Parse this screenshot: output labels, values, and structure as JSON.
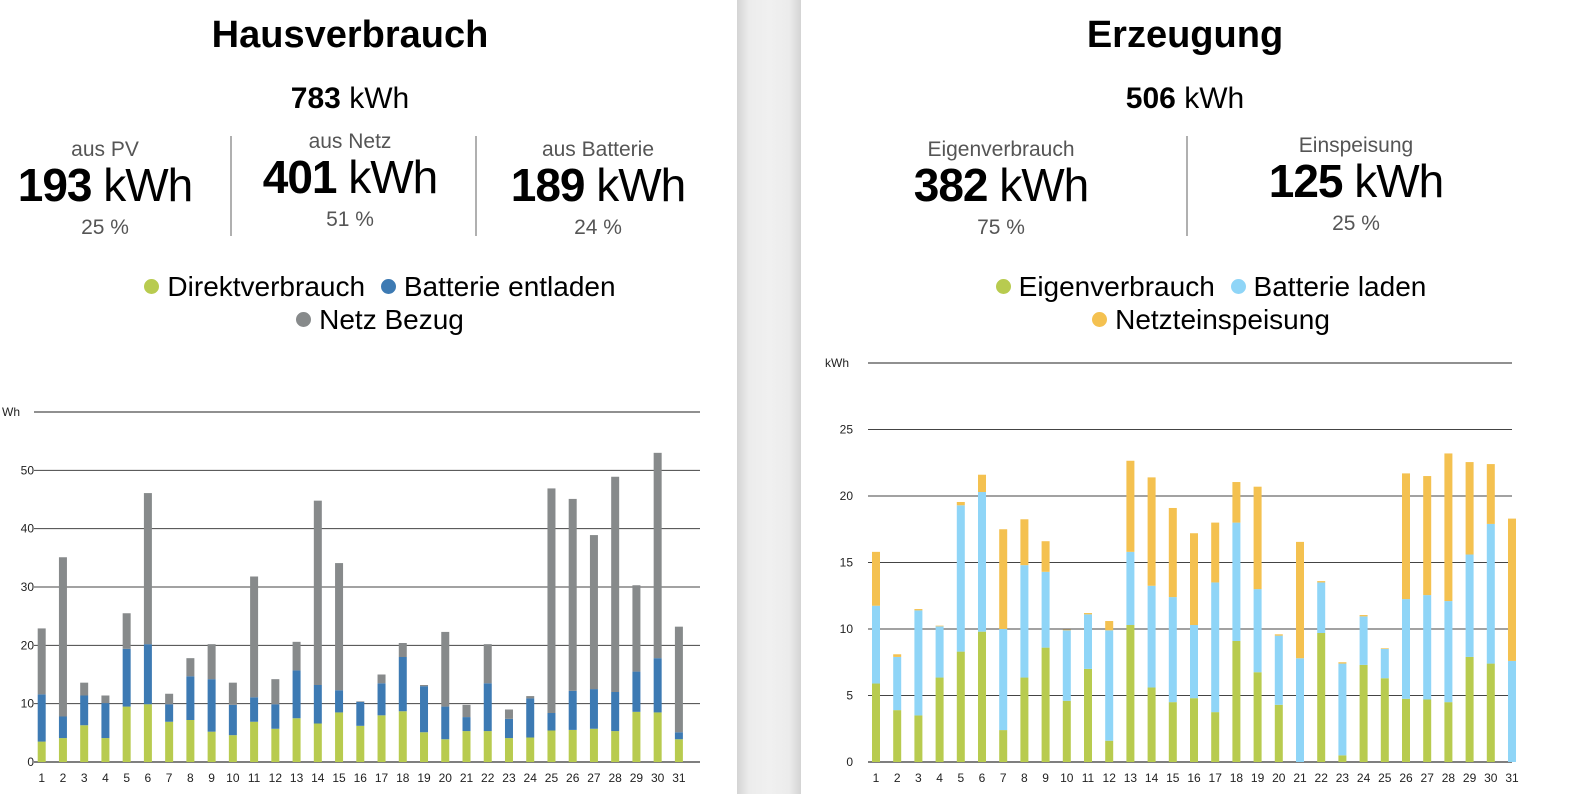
{
  "left": {
    "title": "Hausverbrauch",
    "total_value": "783",
    "total_unit": "kWh",
    "stats": [
      {
        "label": "aus PV",
        "value": "193",
        "unit": "kWh",
        "percent": "25 %"
      },
      {
        "label": "aus Netz",
        "value": "401",
        "unit": "kWh",
        "percent": "51 %"
      },
      {
        "label": "aus Batterie",
        "value": "189",
        "unit": "kWh",
        "percent": "24 %"
      }
    ],
    "legend": [
      {
        "label": "Direktverbrauch",
        "color": "#b8cb4f"
      },
      {
        "label": "Batterie entladen",
        "color": "#3d7ab3"
      },
      {
        "label": "Netz Bezug",
        "color": "#878a8b"
      }
    ]
  },
  "right": {
    "title": "Erzeugung",
    "total_value": "506",
    "total_unit": "kWh",
    "stats": [
      {
        "label": "Eigenverbrauch",
        "value": "382",
        "unit": "kWh",
        "percent": "75 %"
      },
      {
        "label": "Einspeisung",
        "value": "125",
        "unit": "kWh",
        "percent": "25 %"
      }
    ],
    "legend": [
      {
        "label": "Eigenverbrauch",
        "color": "#b8cb4f"
      },
      {
        "label": "Batterie laden",
        "color": "#8fd5f7"
      },
      {
        "label": "Netzteinspeisung",
        "color": "#f4c150"
      }
    ]
  },
  "chart_data": [
    {
      "type": "bar",
      "stacked": true,
      "title": "Hausverbrauch",
      "ylabel": "Wh",
      "ylim": [
        0,
        60
      ],
      "yticks": [
        0,
        10,
        20,
        30,
        40,
        50
      ],
      "categories": [
        "1",
        "2",
        "3",
        "4",
        "5",
        "6",
        "7",
        "8",
        "9",
        "10",
        "11",
        "12",
        "13",
        "14",
        "15",
        "16",
        "17",
        "18",
        "19",
        "20",
        "21",
        "22",
        "23",
        "24",
        "25",
        "26",
        "27",
        "28",
        "29",
        "30",
        "31"
      ],
      "series": [
        {
          "name": "Direktverbrauch",
          "color": "#b8cb4f",
          "values": [
            3.5,
            4.1,
            6.3,
            4.1,
            9.5,
            9.9,
            6.9,
            7.2,
            5.2,
            4.6,
            6.9,
            5.7,
            7.5,
            6.6,
            8.5,
            6.2,
            8.0,
            8.7,
            5.1,
            3.9,
            5.3,
            5.3,
            4.1,
            4.2,
            5.4,
            5.5,
            5.7,
            5.3,
            8.6,
            8.5,
            3.9
          ]
        },
        {
          "name": "Batterie entladen",
          "color": "#3d7ab3",
          "values": [
            8.1,
            3.7,
            5.1,
            6.0,
            9.9,
            10.3,
            3.0,
            7.5,
            9.0,
            5.2,
            4.2,
            4.2,
            8.2,
            6.6,
            3.8,
            4.1,
            5.5,
            9.3,
            7.9,
            5.6,
            2.4,
            8.2,
            3.3,
            6.7,
            3.0,
            6.7,
            6.8,
            6.7,
            6.9,
            9.3,
            1.2
          ]
        },
        {
          "name": "Netz Bezug",
          "color": "#878a8b",
          "values": [
            11.3,
            27.3,
            2.2,
            1.3,
            6.1,
            25.9,
            1.8,
            3.1,
            6.0,
            3.8,
            20.7,
            4.3,
            4.9,
            31.6,
            21.8,
            0.1,
            1.5,
            2.4,
            0.2,
            12.8,
            2.1,
            6.7,
            1.6,
            0.4,
            38.5,
            32.9,
            26.4,
            36.9,
            14.8,
            35.2,
            18.1
          ]
        }
      ]
    },
    {
      "type": "bar",
      "stacked": true,
      "title": "Erzeugung",
      "ylabel": "kWh",
      "ylim": [
        0,
        30
      ],
      "yticks": [
        0,
        5,
        10,
        15,
        20,
        25
      ],
      "categories": [
        "1",
        "2",
        "3",
        "4",
        "5",
        "6",
        "7",
        "8",
        "9",
        "10",
        "11",
        "12",
        "13",
        "14",
        "15",
        "16",
        "17",
        "18",
        "19",
        "20",
        "21",
        "22",
        "23",
        "24",
        "25",
        "26",
        "27",
        "28",
        "29",
        "30",
        "31"
      ],
      "series": [
        {
          "name": "Eigenverbrauch",
          "color": "#b8cb4f",
          "values": [
            5.9,
            3.9,
            3.5,
            6.35,
            8.3,
            9.8,
            2.4,
            6.35,
            8.6,
            4.6,
            7.0,
            1.6,
            10.3,
            5.6,
            4.5,
            4.8,
            3.75,
            9.1,
            6.75,
            4.3,
            0,
            9.7,
            0.5,
            7.3,
            6.3,
            4.75,
            4.7,
            4.5,
            7.9,
            7.4,
            0
          ]
        },
        {
          "name": "Batterie laden",
          "color": "#8fd5f7",
          "values": [
            5.85,
            4.0,
            7.9,
            3.85,
            11.0,
            10.5,
            7.6,
            8.45,
            5.7,
            5.3,
            4.1,
            8.3,
            5.5,
            7.65,
            7.9,
            5.5,
            9.75,
            8.9,
            6.25,
            5.2,
            7.8,
            3.8,
            6.9,
            3.65,
            2.2,
            7.5,
            7.85,
            7.6,
            7.7,
            10.5,
            7.6
          ]
        },
        {
          "name": "Netzteinspeisung",
          "color": "#f4c150",
          "values": [
            4.05,
            0.2,
            0.1,
            0.05,
            0.25,
            1.3,
            7.5,
            3.45,
            2.3,
            0.05,
            0.1,
            0.7,
            6.85,
            8.15,
            6.7,
            6.9,
            4.5,
            3.05,
            7.7,
            0.1,
            8.75,
            0.1,
            0.1,
            0.1,
            0.05,
            9.45,
            8.95,
            11.1,
            6.95,
            4.5,
            10.7
          ]
        }
      ]
    }
  ]
}
